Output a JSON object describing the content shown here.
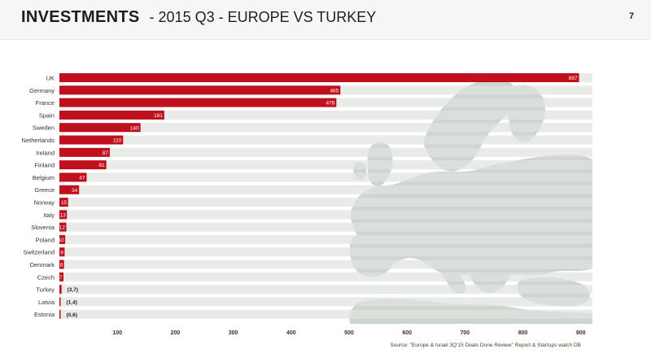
{
  "header": {
    "title_bold": "INVESTMENTS",
    "title_rest": "- 2015 Q3 - EUROPE VS TURKEY",
    "page_number": "7"
  },
  "source": "Source: \"Europe & Israel 3Q'15 Deals Done Review\" Report & Startups watch DB",
  "colors": {
    "bar": "#c0101d",
    "track": "#dfe3df",
    "map": "#c9d1cb"
  },
  "chart_data": {
    "type": "bar",
    "orientation": "horizontal",
    "categories": [
      "UK",
      "Germany",
      "France",
      "Spain",
      "Sweden",
      "Netherlands",
      "Ireland",
      "Finland",
      "Belgium",
      "Greece",
      "Norway",
      "Italy",
      "Slovenia",
      "Poland",
      "Switzerland",
      "Denmark",
      "Czech",
      "Turkey",
      "Latvia",
      "Estonia"
    ],
    "values": [
      897,
      485,
      478,
      181,
      140,
      110,
      87,
      81,
      47,
      34,
      15,
      13,
      12,
      10,
      9,
      8,
      7,
      3.7,
      1.4,
      0.6
    ],
    "value_labels": [
      "897",
      "485",
      "478",
      "181",
      "140",
      "110",
      "87",
      "81",
      "47",
      "34",
      "15",
      "13",
      "12",
      "10",
      "9",
      "8",
      "7",
      "(3,7)",
      "(1,4)",
      "(0,6)"
    ],
    "xlim": [
      0,
      920
    ],
    "xticks": [
      100,
      200,
      300,
      400,
      500,
      600,
      700,
      800,
      900
    ],
    "xtick_labels": [
      "100",
      "200",
      "300",
      "400",
      "500",
      "600",
      "700",
      "800",
      "900"
    ],
    "title": "",
    "xlabel": "",
    "ylabel": ""
  }
}
